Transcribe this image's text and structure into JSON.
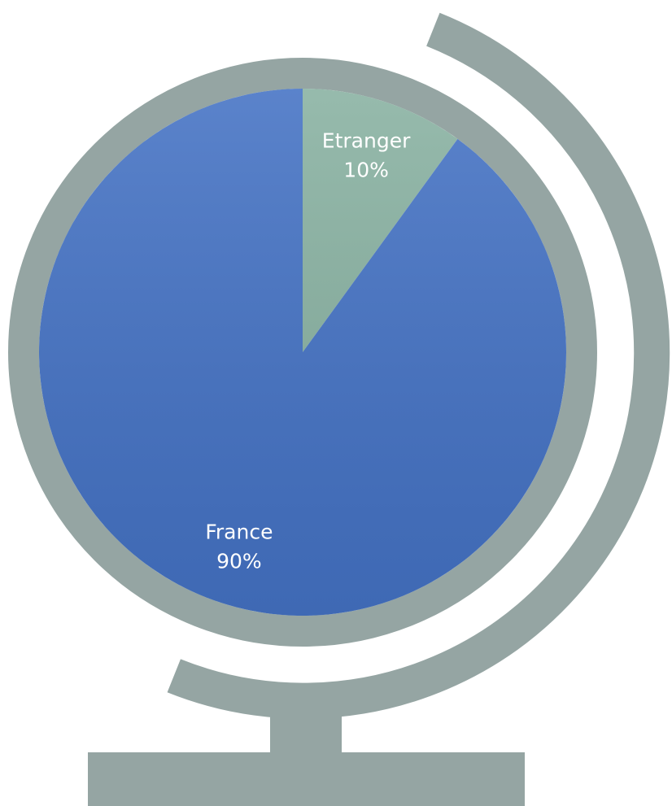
{
  "chart_data": {
    "type": "pie",
    "categories": [
      "Etranger",
      "France"
    ],
    "values": [
      10,
      90
    ],
    "value_labels": [
      "10%",
      "90%"
    ],
    "colors": [
      "#88b1a1",
      "#4472c4"
    ]
  }
}
